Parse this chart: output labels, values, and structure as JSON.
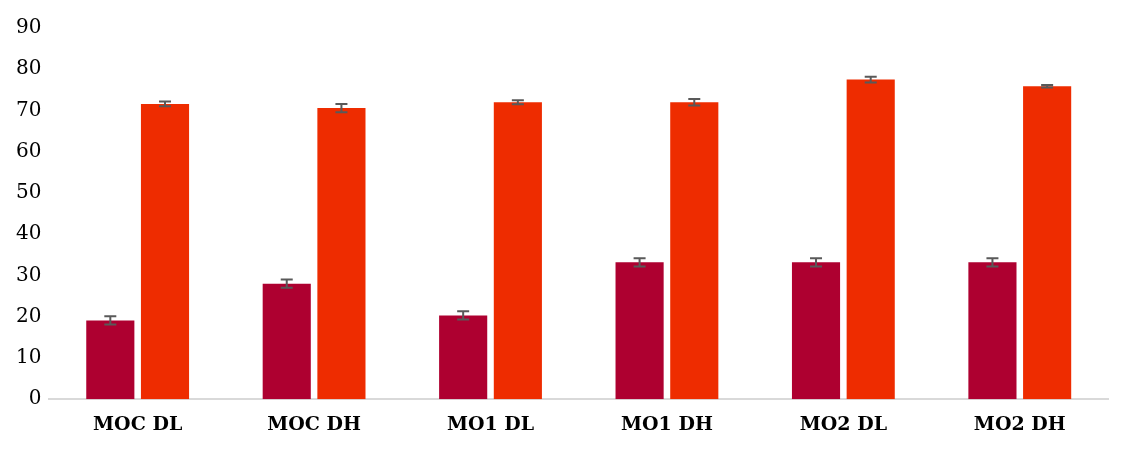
{
  "chart_data": {
    "type": "bar",
    "categories": [
      "MOC DL",
      "MOC DH",
      "MO1 DL",
      "MO1 DH",
      "MO2 DL",
      "MO2 DH"
    ],
    "series": [
      {
        "color": "#ae0030",
        "values": [
          19.1,
          28.0,
          20.3,
          33.2,
          33.2,
          33.2
        ],
        "errors": [
          1.0,
          1.0,
          1.0,
          1.0,
          1.0,
          1.0
        ]
      },
      {
        "color": "#ee2c00",
        "values": [
          71.6,
          70.6,
          72.0,
          72.0,
          77.5,
          75.9
        ],
        "errors": [
          0.6,
          1.0,
          0.5,
          0.8,
          0.7,
          0.3
        ]
      }
    ],
    "ylim": [
      0,
      90
    ],
    "yticks": [
      0,
      10,
      20,
      30,
      40,
      50,
      60,
      70,
      80,
      90
    ],
    "grid": false,
    "legend": false
  }
}
